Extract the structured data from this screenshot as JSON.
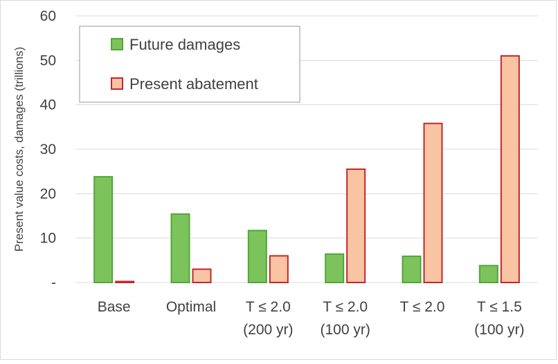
{
  "chart_data": {
    "type": "bar",
    "title": "",
    "xlabel": "",
    "ylabel": "Present value costs, damages (trillions)",
    "ylim": [
      0,
      60
    ],
    "yticks": [
      {
        "value": 0,
        "label": "-"
      },
      {
        "value": 10,
        "label": "10"
      },
      {
        "value": 20,
        "label": "20"
      },
      {
        "value": 30,
        "label": "30"
      },
      {
        "value": 40,
        "label": "40"
      },
      {
        "value": 50,
        "label": "50"
      },
      {
        "value": 60,
        "label": "60"
      }
    ],
    "grid": true,
    "legend_position": "top-left",
    "categories": [
      {
        "line1": "Base",
        "line2": ""
      },
      {
        "line1": "Optimal",
        "line2": ""
      },
      {
        "line1": "T ≤ 2.0",
        "line2": "(200 yr)"
      },
      {
        "line1": "T ≤ 2.0",
        "line2": "(100 yr)"
      },
      {
        "line1": "T ≤ 2.0",
        "line2": ""
      },
      {
        "line1": "T ≤ 1.5",
        "line2": "(100 yr)"
      }
    ],
    "series": [
      {
        "name": "Future damages",
        "fill": "#7dc35b",
        "stroke": "#4fa63a",
        "values": [
          23.8,
          15.4,
          11.7,
          6.4,
          5.9,
          3.8
        ]
      },
      {
        "name": "Present abatement",
        "fill": "#f8c4a2",
        "stroke": "#c1272d",
        "values": [
          0.2,
          3.0,
          6.0,
          25.5,
          35.8,
          51.0
        ]
      }
    ]
  }
}
